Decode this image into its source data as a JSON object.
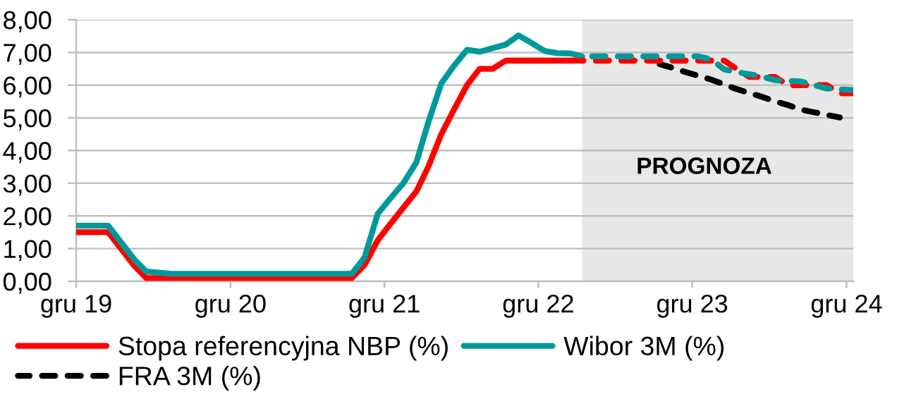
{
  "chart_data": {
    "type": "line",
    "xlim": [
      "2019-12-01",
      "2024-12-17"
    ],
    "xticks": [
      {
        "value": "2019-12-01",
        "label": "gru 19"
      },
      {
        "value": "2020-12-01",
        "label": "gru 20"
      },
      {
        "value": "2021-12-01",
        "label": "gru 21"
      },
      {
        "value": "2022-12-01",
        "label": "gru 22"
      },
      {
        "value": "2023-12-01",
        "label": "gru 23"
      },
      {
        "value": "2024-12-01",
        "label": "gru 24"
      }
    ],
    "ylim": [
      0,
      8
    ],
    "yticks": [
      {
        "value": 0,
        "label": "0,00"
      },
      {
        "value": 1,
        "label": "1,00"
      },
      {
        "value": 2,
        "label": "2,00"
      },
      {
        "value": 3,
        "label": "3,00"
      },
      {
        "value": 4,
        "label": "4,00"
      },
      {
        "value": 5,
        "label": "5,00"
      },
      {
        "value": 6,
        "label": "6,00"
      },
      {
        "value": 7,
        "label": "7,00"
      },
      {
        "value": 8,
        "label": "8,00"
      }
    ],
    "grid": "y",
    "legend": "bottom",
    "line_style": "solid",
    "bands": [
      {
        "axis": "x",
        "from": "2023-03-15",
        "to": "2024-12-17",
        "label": "PROGNOZA",
        "color": "#e7e7e7"
      }
    ],
    "series": [
      {
        "name": "Stopa referencyjna NBP (%)",
        "color": "#ff0000",
        "x": [
          "2019-12-01",
          "2020-02-15",
          "2020-04-15",
          "2020-05-15",
          "2021-09-15",
          "2021-10-15",
          "2021-11-15",
          "2021-12-15",
          "2022-01-15",
          "2022-02-15",
          "2022-03-15",
          "2022-04-15",
          "2022-05-15",
          "2022-06-15",
          "2022-07-15",
          "2022-08-15",
          "2022-09-15",
          "2023-03-15"
        ],
        "values": [
          1.5,
          1.5,
          0.5,
          0.1,
          0.1,
          0.5,
          1.25,
          1.75,
          2.25,
          2.75,
          3.5,
          4.5,
          5.25,
          6.0,
          6.5,
          6.5,
          6.75,
          6.75
        ]
      },
      {
        "name": "Wibor 3M (%)",
        "color": "#009999",
        "x": [
          "2019-12-01",
          "2020-02-15",
          "2020-04-15",
          "2020-05-15",
          "2020-07-15",
          "2021-09-15",
          "2021-10-15",
          "2021-11-15",
          "2021-12-15",
          "2022-01-15",
          "2022-02-15",
          "2022-03-15",
          "2022-04-15",
          "2022-05-15",
          "2022-06-15",
          "2022-07-15",
          "2022-08-15",
          "2022-09-15",
          "2022-10-15",
          "2022-11-15",
          "2022-12-15",
          "2023-01-15",
          "2023-02-15",
          "2023-03-15"
        ],
        "values": [
          1.7,
          1.7,
          0.7,
          0.3,
          0.23,
          0.23,
          0.73,
          2.06,
          2.53,
          3.0,
          3.64,
          4.86,
          6.05,
          6.59,
          7.08,
          7.02,
          7.13,
          7.24,
          7.52,
          7.29,
          7.05,
          6.98,
          6.97,
          6.88
        ]
      },
      {
        "name": "FRA 3M (%)",
        "color": "#000000",
        "line_style": "dashed",
        "x": [
          "2023-09-15",
          "2023-10-15",
          "2023-11-15",
          "2023-12-15",
          "2024-01-15",
          "2024-02-15",
          "2024-03-15",
          "2024-04-15",
          "2024-05-15",
          "2024-06-15",
          "2024-07-15",
          "2024-08-15",
          "2024-09-15",
          "2024-10-15",
          "2024-11-15"
        ],
        "values": [
          6.64,
          6.53,
          6.4,
          6.29,
          6.17,
          6.02,
          5.88,
          5.76,
          5.64,
          5.5,
          5.39,
          5.25,
          5.17,
          5.09,
          5.01
        ]
      },
      {
        "color": "#ff0000",
        "line_style": "dashed",
        "x": [
          "2023-03-15",
          "2024-02-15",
          "2024-03-15",
          "2024-04-15",
          "2024-06-15",
          "2024-07-15",
          "2024-10-15",
          "2024-11-15",
          "2024-12-15"
        ],
        "values": [
          6.75,
          6.75,
          6.5,
          6.25,
          6.25,
          6.0,
          6.0,
          5.75,
          5.75
        ]
      },
      {
        "color": "#009999",
        "line_style": "dashed",
        "x": [
          "2023-03-15",
          "2023-12-15",
          "2024-01-15",
          "2024-02-15",
          "2024-03-15",
          "2024-04-15",
          "2024-05-15",
          "2024-06-15",
          "2024-07-15",
          "2024-08-15",
          "2024-09-15",
          "2024-10-15",
          "2024-11-15",
          "2024-12-15"
        ],
        "values": [
          6.88,
          6.88,
          6.79,
          6.48,
          6.4,
          6.33,
          6.26,
          6.15,
          6.13,
          6.11,
          6.0,
          5.9,
          5.87,
          5.85
        ]
      }
    ]
  }
}
